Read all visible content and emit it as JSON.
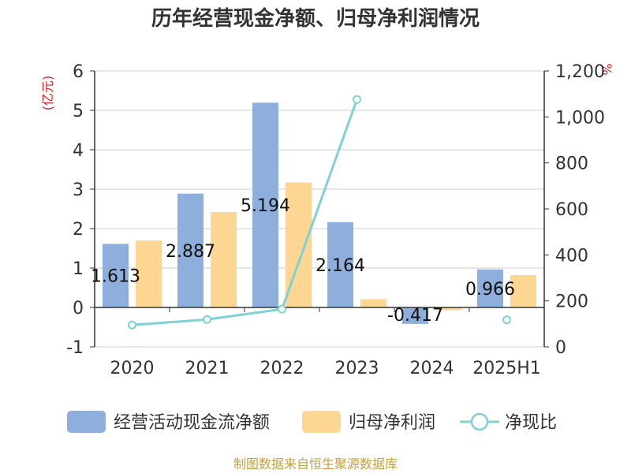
{
  "chart_data": {
    "type": "bar",
    "title": "历年经营现金净额、归母净利润情况",
    "categories": [
      "2020",
      "2021",
      "2022",
      "2023",
      "2024",
      "2025H1"
    ],
    "y_left": {
      "unit": "(亿元)",
      "min": -1,
      "max": 6,
      "ticks": [
        "-1",
        "0",
        "1",
        "2",
        "3",
        "4",
        "5",
        "6"
      ]
    },
    "y_right": {
      "unit": "%",
      "min": 0,
      "max": 1200,
      "ticks": [
        "0",
        "200",
        "400",
        "600",
        "800",
        "1,000",
        "1,200"
      ]
    },
    "grid": true,
    "legend_position": "bottom",
    "series": [
      {
        "name": "经营活动现金流净额",
        "kind": "bar",
        "axis": "left",
        "color": "#8eaedb",
        "values": [
          1.613,
          2.887,
          5.194,
          2.164,
          -0.417,
          0.966
        ],
        "labels": [
          "1.613",
          "2.887",
          "5.194",
          "2.164",
          "-0.417",
          "0.966"
        ]
      },
      {
        "name": "归母净利润",
        "kind": "bar",
        "axis": "left",
        "color": "#fdd693",
        "values": [
          1.7,
          2.42,
          3.17,
          0.21,
          -0.07,
          0.82
        ]
      },
      {
        "name": "净现比",
        "kind": "line",
        "axis": "right",
        "color": "#7fd1d4",
        "values": [
          95,
          119,
          164,
          1076,
          null,
          118
        ]
      }
    ]
  },
  "source": {
    "text": "制图数据来自恒生聚源数据库",
    "color": "#c8a03c"
  },
  "colors": {
    "unit_red": "#e02020"
  }
}
